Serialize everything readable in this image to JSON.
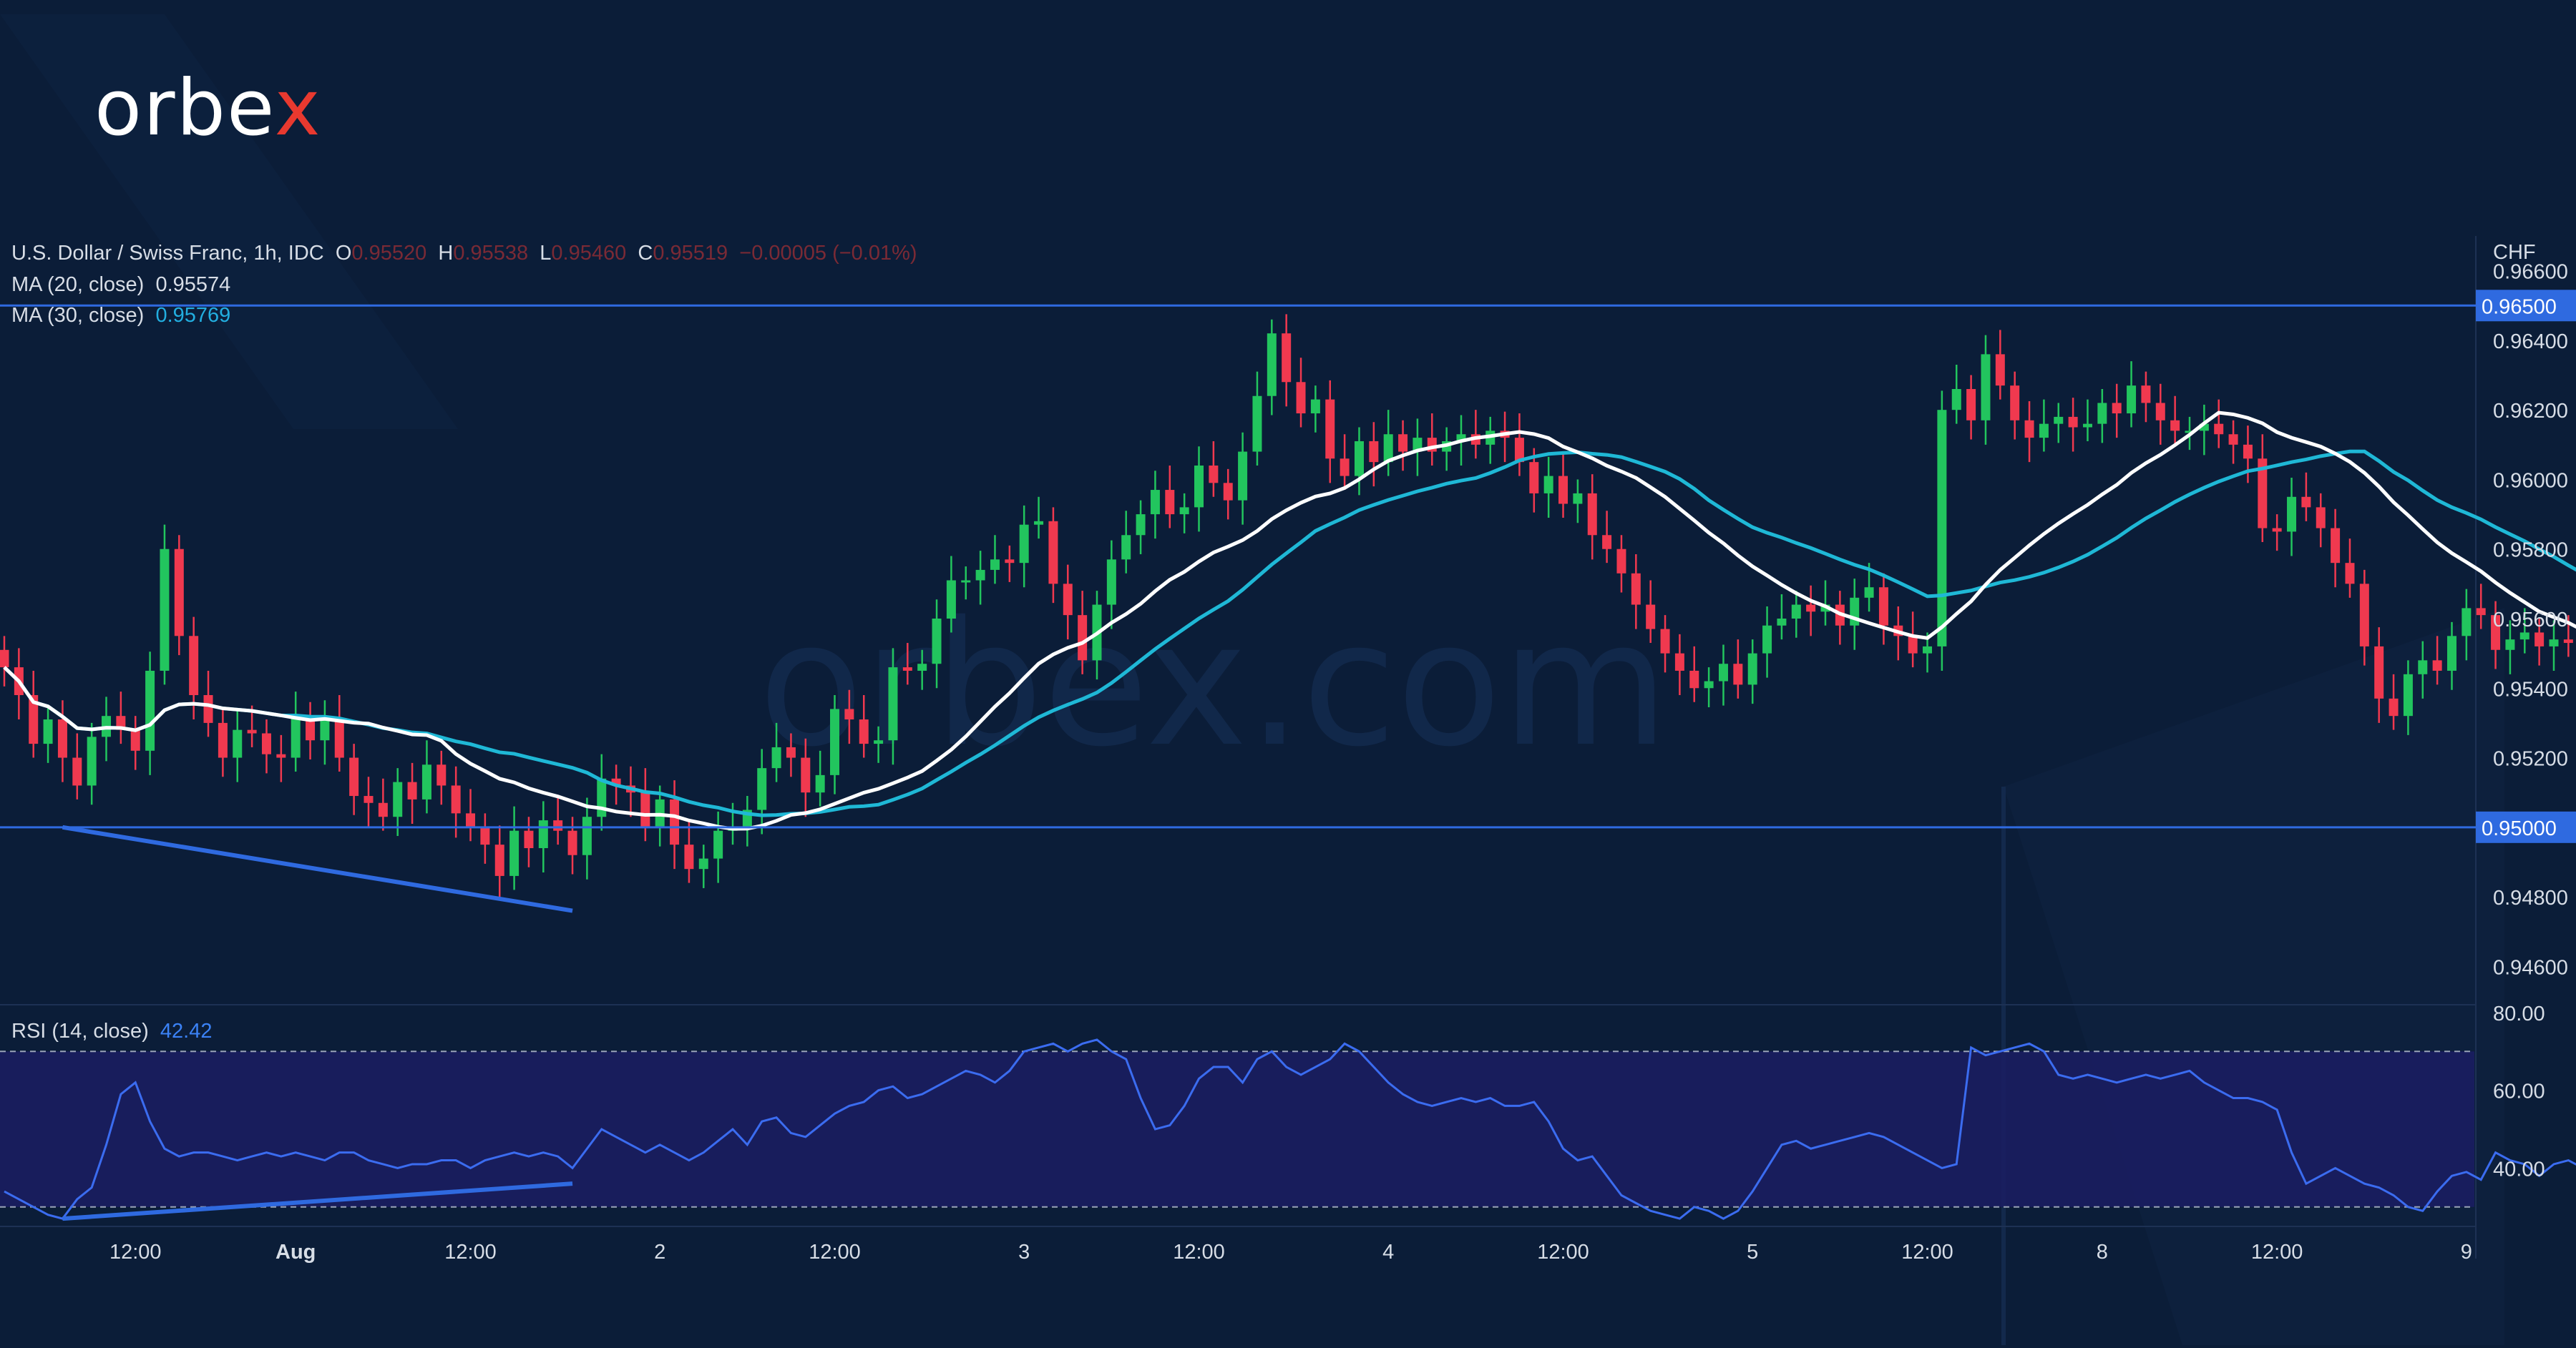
{
  "brand": {
    "name_main": "orbe",
    "name_accent": "x",
    "watermark": "orbex.com"
  },
  "legend": {
    "symbol": "U.S. Dollar / Swiss Franc, 1h, IDC",
    "o_label": "O",
    "o_value": "0.95520",
    "h_label": "H",
    "h_value": "0.95538",
    "l_label": "L",
    "l_value": "0.95460",
    "c_label": "C",
    "c_value": "0.95519",
    "change": "−0.00005 (−0.01%)",
    "ma20_label": "MA (20, close)",
    "ma20_value": "0.95574",
    "ma30_label": "MA (30, close)",
    "ma30_value": "0.95769",
    "rsi_label": "RSI (14, close)",
    "rsi_value": "42.42"
  },
  "colors": {
    "background": "#0b1d38",
    "up": "#22c55e",
    "down": "#f0394f",
    "ma20": "#ffffff",
    "ma30": "#1fb8d6",
    "level": "#2f6ae0",
    "rsi": "#3b6cf0"
  },
  "chart_data": [
    {
      "type": "candlestick",
      "title": "U.S. Dollar / Swiss Franc, 1h, IDC",
      "ylabel": "CHF",
      "ylim": [
        0.945,
        0.967
      ],
      "y_ticks": [
        "0.96600",
        "0.96400",
        "0.96200",
        "0.96000",
        "0.95800",
        "0.95600",
        "0.95400",
        "0.95200",
        "0.95000",
        "0.94800",
        "0.94600"
      ],
      "x_ticks": [
        {
          "label": "12:00",
          "index": 9
        },
        {
          "label": "Aug",
          "index": 20
        },
        {
          "label": "12:00",
          "index": 32
        },
        {
          "label": "2",
          "index": 45
        },
        {
          "label": "12:00",
          "index": 57
        },
        {
          "label": "3",
          "index": 70
        },
        {
          "label": "12:00",
          "index": 82
        },
        {
          "label": "4",
          "index": 95
        },
        {
          "label": "12:00",
          "index": 107
        },
        {
          "label": "5",
          "index": 120
        },
        {
          "label": "12:00",
          "index": 132
        },
        {
          "label": "8",
          "index": 144
        },
        {
          "label": "12:00",
          "index": 156
        },
        {
          "label": "9",
          "index": 169
        }
      ],
      "levels": [
        {
          "value": 0.965,
          "label": "0.96500"
        },
        {
          "value": 0.95,
          "label": "0.95000"
        }
      ],
      "trendline": {
        "from_index": 4,
        "from_value": 0.95,
        "to_index": 39,
        "to_value": 0.9476
      },
      "closes": [
        0.9546,
        0.9538,
        0.9524,
        0.9531,
        0.952,
        0.9512,
        0.9526,
        0.9532,
        0.9528,
        0.9522,
        0.9545,
        0.958,
        0.9555,
        0.9538,
        0.953,
        0.952,
        0.9528,
        0.9527,
        0.9521,
        0.952,
        0.9532,
        0.9525,
        0.9531,
        0.952,
        0.9509,
        0.9507,
        0.9503,
        0.9513,
        0.9508,
        0.9518,
        0.9512,
        0.9504,
        0.95,
        0.9495,
        0.9486,
        0.9499,
        0.9494,
        0.9502,
        0.9499,
        0.9492,
        0.9503,
        0.9514,
        0.9512,
        0.951,
        0.95,
        0.9508,
        0.9495,
        0.9488,
        0.9491,
        0.9499,
        0.95,
        0.9505,
        0.9517,
        0.9523,
        0.952,
        0.951,
        0.9515,
        0.9534,
        0.9531,
        0.9524,
        0.9525,
        0.9546,
        0.9545,
        0.9547,
        0.956,
        0.9571,
        0.9571,
        0.9574,
        0.9577,
        0.9576,
        0.9587,
        0.9588,
        0.957,
        0.9561,
        0.9548,
        0.9564,
        0.9577,
        0.9584,
        0.959,
        0.9597,
        0.959,
        0.9592,
        0.9604,
        0.9599,
        0.9594,
        0.9608,
        0.9624,
        0.9642,
        0.9628,
        0.9619,
        0.9623,
        0.9606,
        0.9601,
        0.9611,
        0.9605,
        0.9613,
        0.9608,
        0.9612,
        0.9608,
        0.9611,
        0.9613,
        0.961,
        0.9614,
        0.9612,
        0.9605,
        0.9596,
        0.9601,
        0.9593,
        0.9596,
        0.9584,
        0.958,
        0.9573,
        0.9564,
        0.9557,
        0.955,
        0.9545,
        0.954,
        0.9542,
        0.9547,
        0.9541,
        0.955,
        0.9558,
        0.956,
        0.9564,
        0.9562,
        0.9564,
        0.9558,
        0.9566,
        0.9569,
        0.9558,
        0.9555,
        0.955,
        0.9552,
        0.962,
        0.9626,
        0.9617,
        0.9636,
        0.9627,
        0.9617,
        0.9612,
        0.9616,
        0.9618,
        0.9615,
        0.9616,
        0.9622,
        0.9619,
        0.9627,
        0.9622,
        0.9617,
        0.9614,
        0.9614,
        0.9616,
        0.9613,
        0.961,
        0.9606,
        0.9586,
        0.9585,
        0.9595,
        0.9592,
        0.9586,
        0.9576,
        0.957,
        0.9552,
        0.9537,
        0.9532,
        0.9544,
        0.9548,
        0.9545,
        0.9555,
        0.9563,
        0.9561,
        0.9551,
        0.9554,
        0.9556,
        0.9552,
        0.9554,
        0.9553,
        0.9552
      ]
    },
    {
      "type": "line",
      "title": "RSI (14, close)",
      "ylim": [
        25,
        82
      ],
      "y_ticks": [
        "80.00",
        "60.00",
        "40.00"
      ],
      "bands": [
        30,
        70
      ],
      "trendline": {
        "from_index": 4,
        "from_value": 27,
        "to_index": 39,
        "to_value": 36
      },
      "values": [
        34,
        32,
        30,
        28,
        27,
        32,
        35,
        46,
        59,
        62,
        52,
        45,
        43,
        44,
        44,
        43,
        42,
        43,
        44,
        43,
        44,
        43,
        42,
        44,
        44,
        42,
        41,
        40,
        41,
        41,
        42,
        42,
        40,
        42,
        43,
        44,
        43,
        44,
        43,
        40,
        45,
        50,
        48,
        46,
        44,
        46,
        44,
        42,
        44,
        47,
        50,
        46,
        52,
        53,
        49,
        48,
        51,
        54,
        56,
        57,
        60,
        61,
        58,
        59,
        61,
        63,
        65,
        64,
        62,
        65,
        70,
        71,
        72,
        70,
        72,
        73,
        70,
        68,
        58,
        50,
        51,
        56,
        63,
        66,
        66,
        62,
        68,
        70,
        66,
        64,
        66,
        68,
        72,
        70,
        66,
        62,
        59,
        57,
        56,
        57,
        58,
        57,
        58,
        56,
        56,
        57,
        52,
        45,
        42,
        43,
        38,
        33,
        31,
        29,
        28,
        27,
        30,
        29,
        27,
        29,
        34,
        40,
        46,
        47,
        45,
        46,
        47,
        48,
        49,
        48,
        46,
        44,
        42,
        40,
        41,
        71,
        69,
        70,
        71,
        72,
        70,
        64,
        63,
        64,
        63,
        62,
        63,
        64,
        63,
        64,
        65,
        62,
        60,
        58,
        58,
        57,
        55,
        44,
        36,
        38,
        40,
        38,
        36,
        35,
        33,
        30,
        29,
        34,
        38,
        39,
        37,
        44,
        42,
        41,
        38,
        41,
        42,
        40,
        42,
        43,
        42,
        42
      ]
    }
  ]
}
